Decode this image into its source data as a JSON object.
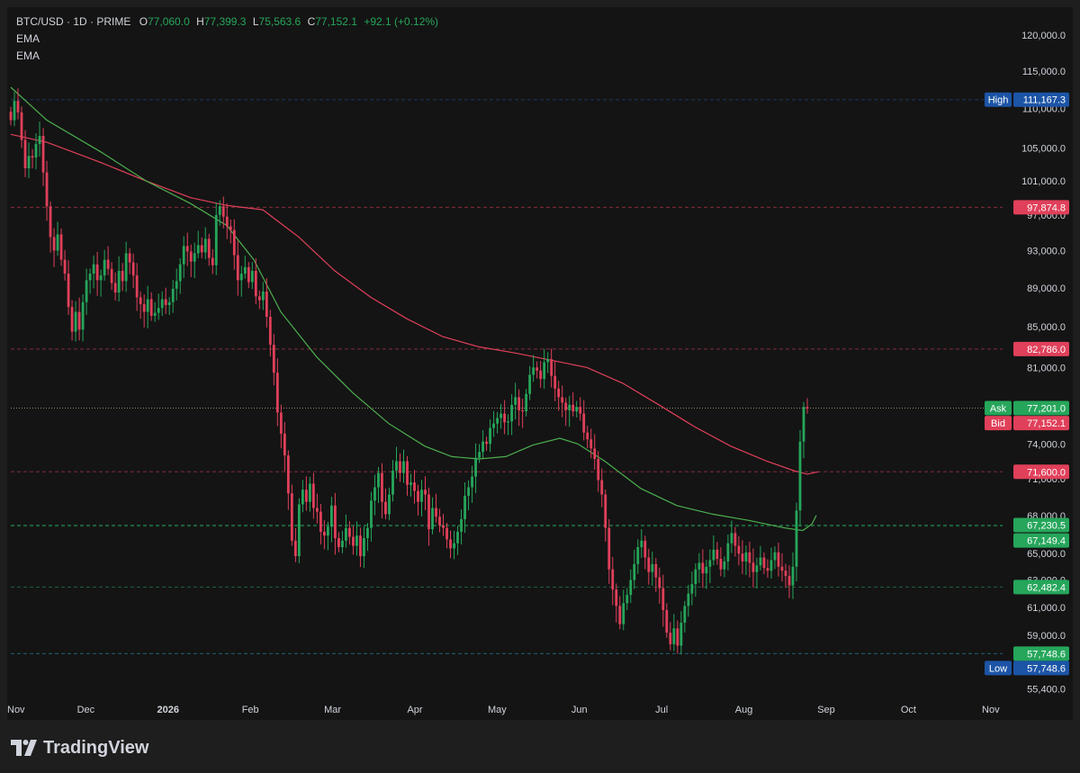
{
  "legend": {
    "symbol": "BTC/USD · 1D · PRIME",
    "open_label": "O",
    "open": "77,060.0",
    "high_label": "H",
    "high": "77,399.3",
    "low_label": "L",
    "low": "75,563.6",
    "close_label": "C",
    "close": "77,152.1",
    "change": "+92.1 (+0.12%)",
    "indicators": [
      "EMA",
      "EMA"
    ]
  },
  "footer": {
    "brand": "TradingView"
  },
  "colors": {
    "up": "#26a65b",
    "down": "#e0405a",
    "ema_fast": "#4caf50",
    "ema_slow": "#e0405a",
    "background": "#141414",
    "blue_tag": "#1c54a6",
    "red_tag": "#e0405a",
    "green_tag": "#26a65b"
  },
  "chart_data": {
    "type": "candlestick",
    "title": "BTC/USD · 1D · PRIME",
    "x_ticks": [
      "Nov",
      "Dec",
      "2026",
      "Feb",
      "Mar",
      "Apr",
      "May",
      "Jun",
      "Jul",
      "Aug",
      "Sep",
      "Oct",
      "Nov"
    ],
    "y_ticks": [
      "120,000.0",
      "115,000.0",
      "110,000.0",
      "105,000.0",
      "101,000.0",
      "97,000.0",
      "93,000.0",
      "89,000.0",
      "85,000.0",
      "81,000.0",
      "74,000.0",
      "71,000.0",
      "68,000.0",
      "65,000.0",
      "63,000.0",
      "61,000.0",
      "59,000.0",
      "55,400.0"
    ],
    "y_tick_values": [
      120000,
      115000,
      110000,
      105000,
      101000,
      97000,
      93000,
      89000,
      85000,
      81000,
      74000,
      71000,
      68000,
      65000,
      63000,
      61000,
      59000,
      55400
    ],
    "y_scale": "log",
    "ylim": [
      53400,
      124000
    ],
    "grid": false,
    "price_tags": [
      {
        "label": "High",
        "value": "111,167.3",
        "price": 111167.3,
        "color": "blue"
      },
      {
        "label": "",
        "value": "97,874.8",
        "price": 97874.8,
        "color": "red"
      },
      {
        "label": "",
        "value": "82,786.0",
        "price": 82786.0,
        "color": "red"
      },
      {
        "label": "Ask",
        "value": "77,201.0",
        "price": 77201.0,
        "color": "green"
      },
      {
        "label": "Bid",
        "value": "77,152.1",
        "price": 77152.1,
        "color": "red"
      },
      {
        "label": "",
        "value": "71,600.0",
        "price": 71600.0,
        "color": "red"
      },
      {
        "label": "",
        "value": "67,230.5",
        "price": 67230.5,
        "color": "green"
      },
      {
        "label": "",
        "value": "67,149.4",
        "price": 67149.4,
        "color": "green"
      },
      {
        "label": "",
        "value": "62,482.4",
        "price": 62482.4,
        "color": "green"
      },
      {
        "label": "",
        "value": "57,748.6",
        "price": 57748.6,
        "color": "green"
      },
      {
        "label": "Low",
        "value": "57,748.6",
        "price": 57748.6,
        "color": "blue"
      }
    ],
    "candle_closes": [
      108500,
      111000,
      109500,
      106000,
      102500,
      104000,
      103800,
      105500,
      106500,
      102000,
      98000,
      94500,
      93000,
      94800,
      92000,
      90500,
      87000,
      84500,
      86500,
      84700,
      87500,
      89800,
      90500,
      91500,
      89800,
      90300,
      92000,
      91000,
      89500,
      88500,
      90800,
      89700,
      92700,
      91700,
      90300,
      88000,
      87300,
      86500,
      87800,
      86100,
      86400,
      86900,
      87800,
      87200,
      87500,
      88900,
      89700,
      91500,
      93500,
      92900,
      91800,
      92700,
      93600,
      92800,
      94300,
      92200,
      91400,
      97000,
      98000,
      96800,
      95700,
      95300,
      92500,
      89800,
      90500,
      91200,
      89600,
      90800,
      88100,
      87700,
      88600,
      86000,
      83200,
      80500,
      76800,
      74900,
      73000,
      69800,
      66000,
      64800,
      68900,
      70100,
      69100,
      70600,
      68600,
      68300,
      66700,
      66400,
      67100,
      68800,
      66200,
      65500,
      66000,
      67000,
      66300,
      65600,
      66400,
      64800,
      66200,
      67000,
      69200,
      70300,
      71500,
      69100,
      68100,
      69700,
      71700,
      72500,
      71500,
      72500,
      70500,
      70700,
      70000,
      69100,
      70100,
      69700,
      66900,
      68600,
      67900,
      67200,
      67000,
      66100,
      65400,
      65800,
      66700,
      67700,
      69600,
      70300,
      71200,
      72800,
      73300,
      74200,
      74000,
      75400,
      75800,
      76300,
      76700,
      75900,
      76000,
      77500,
      78200,
      77000,
      76900,
      78500,
      80300,
      81000,
      80700,
      79900,
      81500,
      81800,
      80200,
      79000,
      78200,
      77700,
      77000,
      77500,
      76900,
      77300,
      76700,
      75000,
      74400,
      73600,
      72700,
      70900,
      69700,
      67000,
      63800,
      62300,
      61100,
      59800,
      61300,
      61900,
      63000,
      64200,
      65500,
      66000,
      64700,
      63600,
      64200,
      63200,
      62400,
      60800,
      59200,
      58400,
      59500,
      58300,
      59900,
      61100,
      62000,
      62700,
      63800,
      64300,
      63500,
      64000,
      64500,
      65300,
      64600,
      63800,
      64400,
      65800,
      66600,
      65600,
      65000,
      64400,
      65100,
      64300,
      63600,
      64100,
      64700,
      63900,
      63700,
      64500,
      65100,
      64000,
      63700,
      63300,
      62600,
      64000,
      68400,
      74200,
      77300,
      77152
    ],
    "ema_fast": [
      [
        0,
        112800
      ],
      [
        40,
        108500
      ],
      [
        100,
        104500
      ],
      [
        150,
        101000
      ],
      [
        200,
        98300
      ],
      [
        240,
        95800
      ],
      [
        270,
        92000
      ],
      [
        300,
        86500
      ],
      [
        340,
        82000
      ],
      [
        380,
        78600
      ],
      [
        420,
        75800
      ],
      [
        460,
        73800
      ],
      [
        490,
        72900
      ],
      [
        520,
        72700
      ],
      [
        550,
        72900
      ],
      [
        580,
        73900
      ],
      [
        610,
        74500
      ],
      [
        630,
        74000
      ],
      [
        660,
        72500
      ],
      [
        700,
        70200
      ],
      [
        740,
        68800
      ],
      [
        780,
        68100
      ],
      [
        820,
        67600
      ],
      [
        860,
        67000
      ],
      [
        880,
        66800
      ],
      [
        890,
        67300
      ],
      [
        895,
        68000
      ]
    ],
    "ema_slow": [
      [
        0,
        106700
      ],
      [
        40,
        105700
      ],
      [
        100,
        103200
      ],
      [
        150,
        101000
      ],
      [
        200,
        99000
      ],
      [
        240,
        98100
      ],
      [
        280,
        97600
      ],
      [
        320,
        94500
      ],
      [
        360,
        90800
      ],
      [
        400,
        88000
      ],
      [
        440,
        85800
      ],
      [
        480,
        84000
      ],
      [
        520,
        83000
      ],
      [
        560,
        82400
      ],
      [
        600,
        81700
      ],
      [
        640,
        81000
      ],
      [
        680,
        79500
      ],
      [
        720,
        77500
      ],
      [
        760,
        75500
      ],
      [
        800,
        73800
      ],
      [
        840,
        72500
      ],
      [
        870,
        71700
      ],
      [
        885,
        71400
      ],
      [
        897,
        71600
      ]
    ]
  }
}
